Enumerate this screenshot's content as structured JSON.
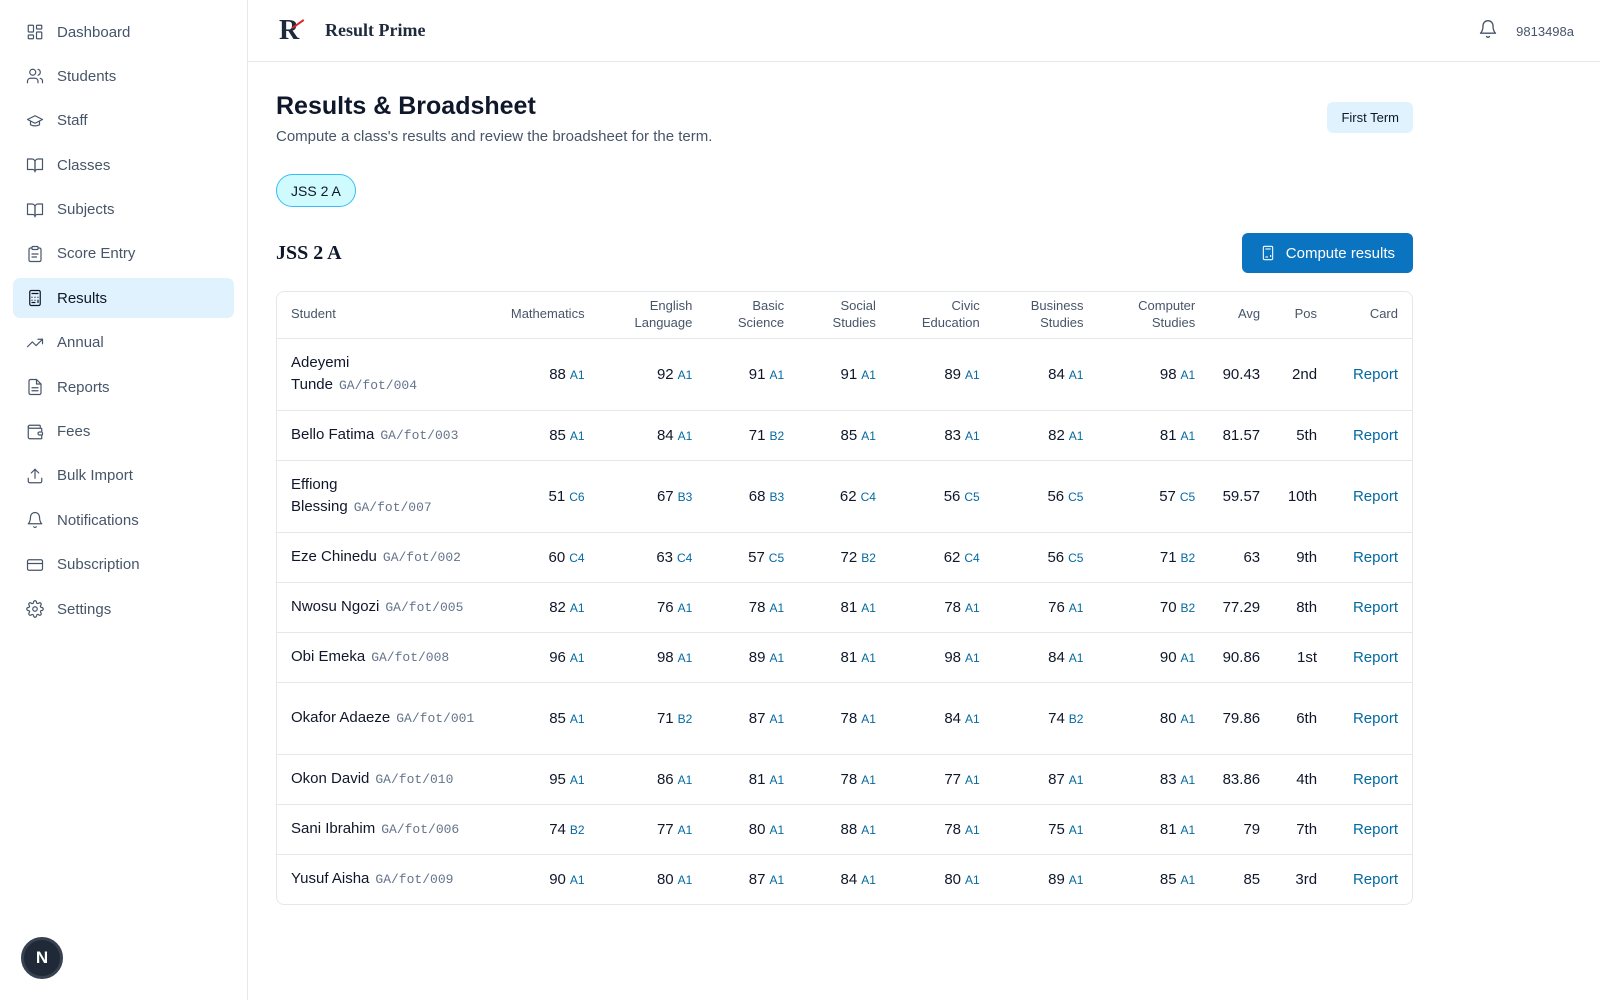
{
  "sidebar": {
    "items": [
      {
        "label": "Dashboard",
        "icon": "grid-icon"
      },
      {
        "label": "Students",
        "icon": "users-icon"
      },
      {
        "label": "Staff",
        "icon": "graduation-cap-icon"
      },
      {
        "label": "Classes",
        "icon": "book-open-icon"
      },
      {
        "label": "Subjects",
        "icon": "book-open-icon"
      },
      {
        "label": "Score Entry",
        "icon": "clipboard-icon"
      },
      {
        "label": "Results",
        "icon": "calculator-icon",
        "active": true
      },
      {
        "label": "Annual",
        "icon": "trending-up-icon"
      },
      {
        "label": "Reports",
        "icon": "file-text-icon"
      },
      {
        "label": "Fees",
        "icon": "wallet-icon"
      },
      {
        "label": "Bulk Import",
        "icon": "upload-icon"
      },
      {
        "label": "Notifications",
        "icon": "bell-icon"
      },
      {
        "label": "Subscription",
        "icon": "credit-card-icon"
      },
      {
        "label": "Settings",
        "icon": "gear-icon"
      }
    ],
    "badge": "N"
  },
  "header": {
    "logo": "R",
    "brand": "Result Prime",
    "user_id": "9813498a"
  },
  "main": {
    "title": "Results & Broadsheet",
    "subtitle": "Compute a class's results and review the broadsheet for the term.",
    "term": "First Term",
    "class_chip": "JSS 2 A",
    "section_title": "JSS 2 A",
    "compute_label": "Compute results"
  },
  "table": {
    "headers": {
      "student": "Student",
      "subjects": [
        [
          "Mathematics"
        ],
        [
          "English",
          "Language"
        ],
        [
          "Basic",
          "Science"
        ],
        [
          "Social",
          "Studies"
        ],
        [
          "Civic",
          "Education"
        ],
        [
          "Business",
          "Studies"
        ],
        [
          "Computer",
          "Studies"
        ]
      ],
      "avg": "Avg",
      "pos": "Pos",
      "card": "Card"
    },
    "rows": [
      {
        "name": "Adeyemi Tunde",
        "id": "GA/fot/004",
        "tall": true,
        "scores": [
          [
            88,
            "A1"
          ],
          [
            92,
            "A1"
          ],
          [
            91,
            "A1"
          ],
          [
            91,
            "A1"
          ],
          [
            89,
            "A1"
          ],
          [
            84,
            "A1"
          ],
          [
            98,
            "A1"
          ]
        ],
        "avg": "90.43",
        "pos": "2nd",
        "card": "Report"
      },
      {
        "name": "Bello Fatima",
        "id": "GA/fot/003",
        "tall": false,
        "scores": [
          [
            85,
            "A1"
          ],
          [
            84,
            "A1"
          ],
          [
            71,
            "B2"
          ],
          [
            85,
            "A1"
          ],
          [
            83,
            "A1"
          ],
          [
            82,
            "A1"
          ],
          [
            81,
            "A1"
          ]
        ],
        "avg": "81.57",
        "pos": "5th",
        "card": "Report"
      },
      {
        "name": "Effiong Blessing",
        "id": "GA/fot/007",
        "tall": true,
        "scores": [
          [
            51,
            "C6"
          ],
          [
            67,
            "B3"
          ],
          [
            68,
            "B3"
          ],
          [
            62,
            "C4"
          ],
          [
            56,
            "C5"
          ],
          [
            56,
            "C5"
          ],
          [
            57,
            "C5"
          ]
        ],
        "avg": "59.57",
        "pos": "10th",
        "card": "Report"
      },
      {
        "name": "Eze Chinedu",
        "id": "GA/fot/002",
        "tall": false,
        "scores": [
          [
            60,
            "C4"
          ],
          [
            63,
            "C4"
          ],
          [
            57,
            "C5"
          ],
          [
            72,
            "B2"
          ],
          [
            62,
            "C4"
          ],
          [
            56,
            "C5"
          ],
          [
            71,
            "B2"
          ]
        ],
        "avg": "63",
        "pos": "9th",
        "card": "Report"
      },
      {
        "name": "Nwosu Ngozi",
        "id": "GA/fot/005",
        "tall": false,
        "scores": [
          [
            82,
            "A1"
          ],
          [
            76,
            "A1"
          ],
          [
            78,
            "A1"
          ],
          [
            81,
            "A1"
          ],
          [
            78,
            "A1"
          ],
          [
            76,
            "A1"
          ],
          [
            70,
            "B2"
          ]
        ],
        "avg": "77.29",
        "pos": "8th",
        "card": "Report"
      },
      {
        "name": "Obi Emeka",
        "id": "GA/fot/008",
        "tall": false,
        "scores": [
          [
            96,
            "A1"
          ],
          [
            98,
            "A1"
          ],
          [
            89,
            "A1"
          ],
          [
            81,
            "A1"
          ],
          [
            98,
            "A1"
          ],
          [
            84,
            "A1"
          ],
          [
            90,
            "A1"
          ]
        ],
        "avg": "90.86",
        "pos": "1st",
        "card": "Report"
      },
      {
        "name": "Okafor Adaeze",
        "id": "GA/fot/001",
        "tall": true,
        "scores": [
          [
            85,
            "A1"
          ],
          [
            71,
            "B2"
          ],
          [
            87,
            "A1"
          ],
          [
            78,
            "A1"
          ],
          [
            84,
            "A1"
          ],
          [
            74,
            "B2"
          ],
          [
            80,
            "A1"
          ]
        ],
        "avg": "79.86",
        "pos": "6th",
        "card": "Report"
      },
      {
        "name": "Okon David",
        "id": "GA/fot/010",
        "tall": false,
        "scores": [
          [
            95,
            "A1"
          ],
          [
            86,
            "A1"
          ],
          [
            81,
            "A1"
          ],
          [
            78,
            "A1"
          ],
          [
            77,
            "A1"
          ],
          [
            87,
            "A1"
          ],
          [
            83,
            "A1"
          ]
        ],
        "avg": "83.86",
        "pos": "4th",
        "card": "Report"
      },
      {
        "name": "Sani Ibrahim",
        "id": "GA/fot/006",
        "tall": false,
        "scores": [
          [
            74,
            "B2"
          ],
          [
            77,
            "A1"
          ],
          [
            80,
            "A1"
          ],
          [
            88,
            "A1"
          ],
          [
            78,
            "A1"
          ],
          [
            75,
            "A1"
          ],
          [
            81,
            "A1"
          ]
        ],
        "avg": "79",
        "pos": "7th",
        "card": "Report"
      },
      {
        "name": "Yusuf Aisha",
        "id": "GA/fot/009",
        "tall": false,
        "scores": [
          [
            90,
            "A1"
          ],
          [
            80,
            "A1"
          ],
          [
            87,
            "A1"
          ],
          [
            84,
            "A1"
          ],
          [
            80,
            "A1"
          ],
          [
            89,
            "A1"
          ],
          [
            85,
            "A1"
          ]
        ],
        "avg": "85",
        "pos": "3rd",
        "card": "Report"
      }
    ]
  }
}
